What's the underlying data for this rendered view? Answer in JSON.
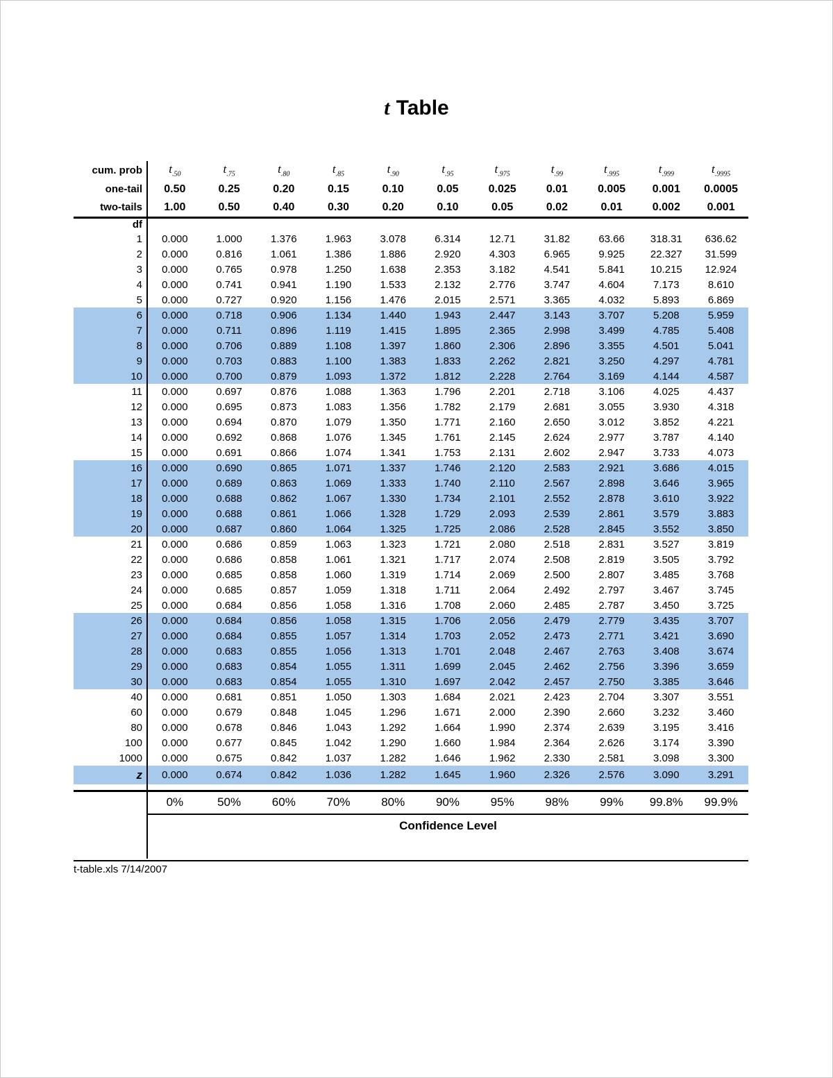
{
  "page": {
    "title_t": "t",
    "title_rest": "Table",
    "footer": "t-table.xls 7/14/2007"
  },
  "colors": {
    "highlight": "#A6C9EC"
  },
  "table": {
    "header": {
      "cum_prob_label": "cum. prob",
      "one_tail_label": "one-tail",
      "two_tails_label": "two-tails",
      "df_label": "df",
      "t_symbol": "t",
      "t_subscripts": [
        ".50",
        ".75",
        ".80",
        ".85",
        ".90",
        ".95",
        ".975",
        ".99",
        ".995",
        ".999",
        ".9995"
      ],
      "one_tail_values": [
        "0.50",
        "0.25",
        "0.20",
        "0.15",
        "0.10",
        "0.05",
        "0.025",
        "0.01",
        "0.005",
        "0.001",
        "0.0005"
      ],
      "two_tails_values": [
        "1.00",
        "0.50",
        "0.40",
        "0.30",
        "0.20",
        "0.10",
        "0.05",
        "0.02",
        "0.01",
        "0.002",
        "0.001"
      ]
    },
    "rows": [
      {
        "df": "1",
        "highlight": false,
        "values": [
          "0.000",
          "1.000",
          "1.376",
          "1.963",
          "3.078",
          "6.314",
          "12.71",
          "31.82",
          "63.66",
          "318.31",
          "636.62"
        ]
      },
      {
        "df": "2",
        "highlight": false,
        "values": [
          "0.000",
          "0.816",
          "1.061",
          "1.386",
          "1.886",
          "2.920",
          "4.303",
          "6.965",
          "9.925",
          "22.327",
          "31.599"
        ]
      },
      {
        "df": "3",
        "highlight": false,
        "values": [
          "0.000",
          "0.765",
          "0.978",
          "1.250",
          "1.638",
          "2.353",
          "3.182",
          "4.541",
          "5.841",
          "10.215",
          "12.924"
        ]
      },
      {
        "df": "4",
        "highlight": false,
        "values": [
          "0.000",
          "0.741",
          "0.941",
          "1.190",
          "1.533",
          "2.132",
          "2.776",
          "3.747",
          "4.604",
          "7.173",
          "8.610"
        ]
      },
      {
        "df": "5",
        "highlight": false,
        "values": [
          "0.000",
          "0.727",
          "0.920",
          "1.156",
          "1.476",
          "2.015",
          "2.571",
          "3.365",
          "4.032",
          "5.893",
          "6.869"
        ]
      },
      {
        "df": "6",
        "highlight": true,
        "values": [
          "0.000",
          "0.718",
          "0.906",
          "1.134",
          "1.440",
          "1.943",
          "2.447",
          "3.143",
          "3.707",
          "5.208",
          "5.959"
        ]
      },
      {
        "df": "7",
        "highlight": true,
        "values": [
          "0.000",
          "0.711",
          "0.896",
          "1.119",
          "1.415",
          "1.895",
          "2.365",
          "2.998",
          "3.499",
          "4.785",
          "5.408"
        ]
      },
      {
        "df": "8",
        "highlight": true,
        "values": [
          "0.000",
          "0.706",
          "0.889",
          "1.108",
          "1.397",
          "1.860",
          "2.306",
          "2.896",
          "3.355",
          "4.501",
          "5.041"
        ]
      },
      {
        "df": "9",
        "highlight": true,
        "values": [
          "0.000",
          "0.703",
          "0.883",
          "1.100",
          "1.383",
          "1.833",
          "2.262",
          "2.821",
          "3.250",
          "4.297",
          "4.781"
        ]
      },
      {
        "df": "10",
        "highlight": true,
        "values": [
          "0.000",
          "0.700",
          "0.879",
          "1.093",
          "1.372",
          "1.812",
          "2.228",
          "2.764",
          "3.169",
          "4.144",
          "4.587"
        ]
      },
      {
        "df": "11",
        "highlight": false,
        "values": [
          "0.000",
          "0.697",
          "0.876",
          "1.088",
          "1.363",
          "1.796",
          "2.201",
          "2.718",
          "3.106",
          "4.025",
          "4.437"
        ]
      },
      {
        "df": "12",
        "highlight": false,
        "values": [
          "0.000",
          "0.695",
          "0.873",
          "1.083",
          "1.356",
          "1.782",
          "2.179",
          "2.681",
          "3.055",
          "3.930",
          "4.318"
        ]
      },
      {
        "df": "13",
        "highlight": false,
        "values": [
          "0.000",
          "0.694",
          "0.870",
          "1.079",
          "1.350",
          "1.771",
          "2.160",
          "2.650",
          "3.012",
          "3.852",
          "4.221"
        ]
      },
      {
        "df": "14",
        "highlight": false,
        "values": [
          "0.000",
          "0.692",
          "0.868",
          "1.076",
          "1.345",
          "1.761",
          "2.145",
          "2.624",
          "2.977",
          "3.787",
          "4.140"
        ]
      },
      {
        "df": "15",
        "highlight": false,
        "values": [
          "0.000",
          "0.691",
          "0.866",
          "1.074",
          "1.341",
          "1.753",
          "2.131",
          "2.602",
          "2.947",
          "3.733",
          "4.073"
        ]
      },
      {
        "df": "16",
        "highlight": true,
        "values": [
          "0.000",
          "0.690",
          "0.865",
          "1.071",
          "1.337",
          "1.746",
          "2.120",
          "2.583",
          "2.921",
          "3.686",
          "4.015"
        ]
      },
      {
        "df": "17",
        "highlight": true,
        "values": [
          "0.000",
          "0.689",
          "0.863",
          "1.069",
          "1.333",
          "1.740",
          "2.110",
          "2.567",
          "2.898",
          "3.646",
          "3.965"
        ]
      },
      {
        "df": "18",
        "highlight": true,
        "values": [
          "0.000",
          "0.688",
          "0.862",
          "1.067",
          "1.330",
          "1.734",
          "2.101",
          "2.552",
          "2.878",
          "3.610",
          "3.922"
        ]
      },
      {
        "df": "19",
        "highlight": true,
        "values": [
          "0.000",
          "0.688",
          "0.861",
          "1.066",
          "1.328",
          "1.729",
          "2.093",
          "2.539",
          "2.861",
          "3.579",
          "3.883"
        ]
      },
      {
        "df": "20",
        "highlight": true,
        "values": [
          "0.000",
          "0.687",
          "0.860",
          "1.064",
          "1.325",
          "1.725",
          "2.086",
          "2.528",
          "2.845",
          "3.552",
          "3.850"
        ]
      },
      {
        "df": "21",
        "highlight": false,
        "values": [
          "0.000",
          "0.686",
          "0.859",
          "1.063",
          "1.323",
          "1.721",
          "2.080",
          "2.518",
          "2.831",
          "3.527",
          "3.819"
        ]
      },
      {
        "df": "22",
        "highlight": false,
        "values": [
          "0.000",
          "0.686",
          "0.858",
          "1.061",
          "1.321",
          "1.717",
          "2.074",
          "2.508",
          "2.819",
          "3.505",
          "3.792"
        ]
      },
      {
        "df": "23",
        "highlight": false,
        "values": [
          "0.000",
          "0.685",
          "0.858",
          "1.060",
          "1.319",
          "1.714",
          "2.069",
          "2.500",
          "2.807",
          "3.485",
          "3.768"
        ]
      },
      {
        "df": "24",
        "highlight": false,
        "values": [
          "0.000",
          "0.685",
          "0.857",
          "1.059",
          "1.318",
          "1.711",
          "2.064",
          "2.492",
          "2.797",
          "3.467",
          "3.745"
        ]
      },
      {
        "df": "25",
        "highlight": false,
        "values": [
          "0.000",
          "0.684",
          "0.856",
          "1.058",
          "1.316",
          "1.708",
          "2.060",
          "2.485",
          "2.787",
          "3.450",
          "3.725"
        ]
      },
      {
        "df": "26",
        "highlight": true,
        "values": [
          "0.000",
          "0.684",
          "0.856",
          "1.058",
          "1.315",
          "1.706",
          "2.056",
          "2.479",
          "2.779",
          "3.435",
          "3.707"
        ]
      },
      {
        "df": "27",
        "highlight": true,
        "values": [
          "0.000",
          "0.684",
          "0.855",
          "1.057",
          "1.314",
          "1.703",
          "2.052",
          "2.473",
          "2.771",
          "3.421",
          "3.690"
        ]
      },
      {
        "df": "28",
        "highlight": true,
        "values": [
          "0.000",
          "0.683",
          "0.855",
          "1.056",
          "1.313",
          "1.701",
          "2.048",
          "2.467",
          "2.763",
          "3.408",
          "3.674"
        ]
      },
      {
        "df": "29",
        "highlight": true,
        "values": [
          "0.000",
          "0.683",
          "0.854",
          "1.055",
          "1.311",
          "1.699",
          "2.045",
          "2.462",
          "2.756",
          "3.396",
          "3.659"
        ]
      },
      {
        "df": "30",
        "highlight": true,
        "values": [
          "0.000",
          "0.683",
          "0.854",
          "1.055",
          "1.310",
          "1.697",
          "2.042",
          "2.457",
          "2.750",
          "3.385",
          "3.646"
        ]
      },
      {
        "df": "40",
        "highlight": false,
        "values": [
          "0.000",
          "0.681",
          "0.851",
          "1.050",
          "1.303",
          "1.684",
          "2.021",
          "2.423",
          "2.704",
          "3.307",
          "3.551"
        ]
      },
      {
        "df": "60",
        "highlight": false,
        "values": [
          "0.000",
          "0.679",
          "0.848",
          "1.045",
          "1.296",
          "1.671",
          "2.000",
          "2.390",
          "2.660",
          "3.232",
          "3.460"
        ]
      },
      {
        "df": "80",
        "highlight": false,
        "values": [
          "0.000",
          "0.678",
          "0.846",
          "1.043",
          "1.292",
          "1.664",
          "1.990",
          "2.374",
          "2.639",
          "3.195",
          "3.416"
        ]
      },
      {
        "df": "100",
        "highlight": false,
        "values": [
          "0.000",
          "0.677",
          "0.845",
          "1.042",
          "1.290",
          "1.660",
          "1.984",
          "2.364",
          "2.626",
          "3.174",
          "3.390"
        ]
      },
      {
        "df": "1000",
        "highlight": false,
        "values": [
          "0.000",
          "0.675",
          "0.842",
          "1.037",
          "1.282",
          "1.646",
          "1.962",
          "2.330",
          "2.581",
          "3.098",
          "3.300"
        ]
      },
      {
        "df": "z",
        "highlight": true,
        "values": [
          "0.000",
          "0.674",
          "0.842",
          "1.036",
          "1.282",
          "1.645",
          "1.960",
          "2.326",
          "2.576",
          "3.090",
          "3.291"
        ]
      }
    ],
    "footer": {
      "confidence_levels": [
        "0%",
        "50%",
        "60%",
        "70%",
        "80%",
        "90%",
        "95%",
        "98%",
        "99%",
        "99.8%",
        "99.9%"
      ],
      "confidence_label": "Confidence Level"
    }
  }
}
